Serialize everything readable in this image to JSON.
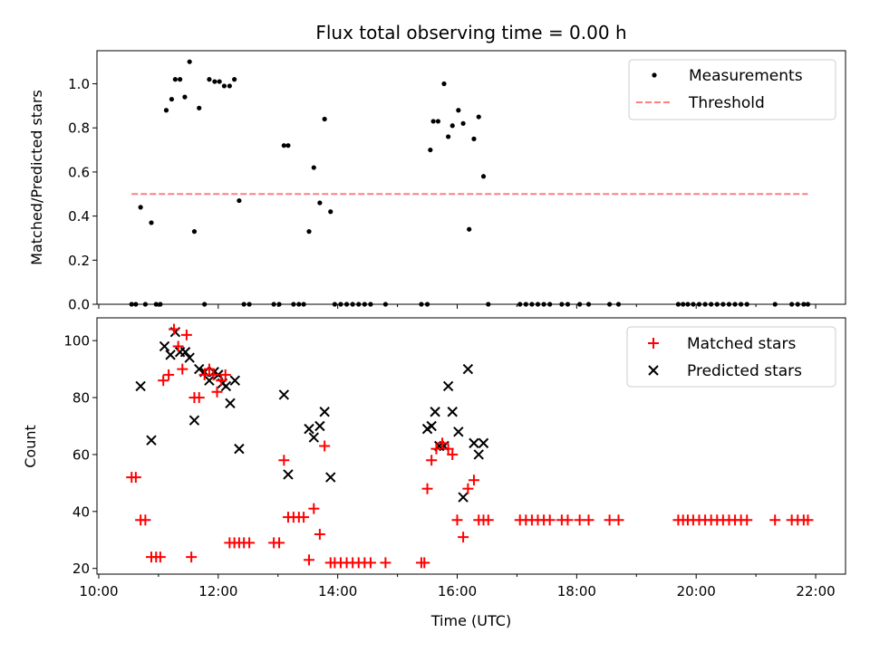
{
  "title": "Flux total observing time = 0.00 h",
  "xlabel": "Time (UTC)",
  "x_ticks": [
    "10:00",
    "12:00",
    "14:00",
    "16:00",
    "18:00",
    "20:00",
    "22:00"
  ],
  "chart_data": [
    {
      "type": "scatter",
      "ylabel": "Matched/Predicted stars",
      "xlim": [
        9.97,
        22.5
      ],
      "ylim": [
        0,
        1.15
      ],
      "y_ticks": [
        0.0,
        0.2,
        0.4,
        0.6,
        0.8,
        1.0
      ],
      "y_tick_labels": [
        "0.0",
        "0.2",
        "0.4",
        "0.6",
        "0.8",
        "1.0"
      ],
      "legend": "top-right",
      "series": [
        {
          "name": "Measurements",
          "kind": "dot",
          "color": "#000000",
          "x": [
            10.55,
            10.62,
            10.7,
            10.78,
            10.88,
            10.96,
            11.03,
            11.13,
            11.22,
            11.28,
            11.36,
            11.44,
            11.52,
            11.6,
            11.68,
            11.77,
            11.85,
            11.94,
            12.02,
            12.1,
            12.19,
            12.27,
            12.35,
            12.43,
            12.52,
            12.93,
            13.02,
            13.1,
            13.17,
            13.26,
            13.35,
            13.43,
            13.52,
            13.6,
            13.7,
            13.78,
            13.88,
            13.95,
            14.05,
            14.15,
            14.25,
            14.35,
            14.45,
            14.55,
            14.8,
            15.4,
            15.5,
            15.55,
            15.6,
            15.68,
            15.78,
            15.85,
            15.92,
            16.02,
            16.1,
            16.2,
            16.28,
            16.36,
            16.44,
            16.52,
            17.05,
            17.15,
            17.25,
            17.35,
            17.45,
            17.55,
            17.75,
            17.85,
            18.05,
            18.2,
            18.55,
            18.7,
            19.7,
            19.78,
            19.86,
            19.95,
            20.05,
            20.15,
            20.25,
            20.35,
            20.45,
            20.55,
            20.65,
            20.75,
            20.85,
            21.32,
            21.6,
            21.7,
            21.8,
            21.87
          ],
          "y": [
            0.0,
            0.0,
            0.44,
            0.0,
            0.37,
            0.0,
            0.0,
            0.88,
            0.93,
            1.02,
            1.02,
            0.94,
            1.1,
            0.33,
            0.89,
            0.0,
            1.02,
            1.01,
            1.01,
            0.99,
            0.99,
            1.02,
            0.47,
            0.0,
            0.0,
            0.0,
            0.0,
            0.72,
            0.72,
            0.0,
            0.0,
            0.0,
            0.33,
            0.62,
            0.46,
            0.84,
            0.42,
            0.0,
            0.0,
            0.0,
            0.0,
            0.0,
            0.0,
            0.0,
            0.0,
            0.0,
            0.0,
            0.7,
            0.83,
            0.83,
            1.0,
            0.76,
            0.81,
            0.88,
            0.82,
            0.34,
            0.75,
            0.85,
            0.58,
            0.0,
            0.0,
            0.0,
            0.0,
            0.0,
            0.0,
            0.0,
            0.0,
            0.0,
            0.0,
            0.0,
            0.0,
            0.0,
            0.0,
            0.0,
            0.0,
            0.0,
            0.0,
            0.0,
            0.0,
            0.0,
            0.0,
            0.0,
            0.0,
            0.0,
            0.0,
            0.0,
            0.0,
            0.0,
            0.0,
            0.0
          ]
        },
        {
          "name": "Threshold",
          "kind": "dashed-line",
          "color": "#ff7f7f",
          "x": [
            10.55,
            21.87
          ],
          "y": [
            0.5,
            0.5
          ]
        }
      ]
    },
    {
      "type": "scatter",
      "ylabel": "Count",
      "xlim": [
        9.97,
        22.5
      ],
      "ylim": [
        18,
        108
      ],
      "y_ticks": [
        20,
        40,
        60,
        80,
        100
      ],
      "y_tick_labels": [
        "20",
        "40",
        "60",
        "80",
        "100"
      ],
      "legend": "top-right",
      "series": [
        {
          "name": "Matched stars",
          "kind": "plus",
          "color": "#ff0000",
          "x": [
            10.55,
            10.62,
            10.7,
            10.78,
            10.88,
            10.96,
            11.03,
            11.08,
            11.17,
            11.26,
            11.33,
            11.4,
            11.47,
            11.55,
            11.6,
            11.68,
            11.77,
            11.85,
            11.92,
            11.98,
            12.05,
            12.12,
            12.19,
            12.27,
            12.35,
            12.43,
            12.52,
            12.93,
            13.02,
            13.1,
            13.17,
            13.26,
            13.35,
            13.43,
            13.52,
            13.6,
            13.7,
            13.78,
            13.88,
            13.95,
            14.05,
            14.15,
            14.25,
            14.35,
            14.45,
            14.55,
            14.8,
            15.4,
            15.45,
            15.5,
            15.57,
            15.65,
            15.75,
            15.85,
            15.92,
            16.0,
            16.1,
            16.18,
            16.28,
            16.36,
            16.44,
            16.52,
            17.05,
            17.15,
            17.25,
            17.35,
            17.45,
            17.55,
            17.75,
            17.85,
            18.05,
            18.2,
            18.55,
            18.7,
            19.7,
            19.78,
            19.86,
            19.95,
            20.05,
            20.15,
            20.25,
            20.35,
            20.45,
            20.55,
            20.65,
            20.75,
            20.85,
            21.32,
            21.6,
            21.7,
            21.8,
            21.87
          ],
          "y": [
            52,
            52,
            37,
            37,
            24,
            24,
            24,
            86,
            88,
            104,
            98,
            90,
            102,
            24,
            80,
            80,
            88,
            90,
            88,
            82,
            86,
            88,
            29,
            29,
            29,
            29,
            29,
            29,
            29,
            58,
            38,
            38,
            38,
            38,
            23,
            41,
            32,
            63,
            22,
            22,
            22,
            22,
            22,
            22,
            22,
            22,
            22,
            22,
            22,
            48,
            58,
            62,
            64,
            62,
            60,
            37,
            31,
            48,
            51,
            37,
            37,
            37,
            37,
            37,
            37,
            37,
            37,
            37,
            37,
            37,
            37,
            37,
            37,
            37,
            37,
            37,
            37,
            37,
            37,
            37,
            37,
            37,
            37,
            37,
            37,
            37,
            37,
            37,
            37,
            37,
            37,
            37
          ]
        },
        {
          "name": "Predicted stars",
          "kind": "x",
          "color": "#000000",
          "x": [
            10.7,
            10.88,
            11.1,
            11.2,
            11.28,
            11.36,
            11.45,
            11.52,
            11.6,
            11.68,
            11.77,
            11.85,
            11.93,
            12.0,
            12.07,
            12.13,
            12.2,
            12.28,
            12.35,
            13.1,
            13.17,
            13.52,
            13.6,
            13.7,
            13.78,
            13.88,
            15.5,
            15.57,
            15.63,
            15.7,
            15.78,
            15.85,
            15.92,
            16.02,
            16.1,
            16.18,
            16.28,
            16.36,
            16.44
          ],
          "y": [
            84,
            65,
            98,
            95,
            103,
            96,
            96,
            94,
            72,
            90,
            89,
            86,
            89,
            88,
            85,
            84,
            78,
            86,
            62,
            81,
            53,
            69,
            66,
            70,
            75,
            52,
            69,
            70,
            75,
            63,
            63,
            84,
            75,
            68,
            45,
            90,
            64,
            60,
            64
          ]
        }
      ]
    }
  ]
}
